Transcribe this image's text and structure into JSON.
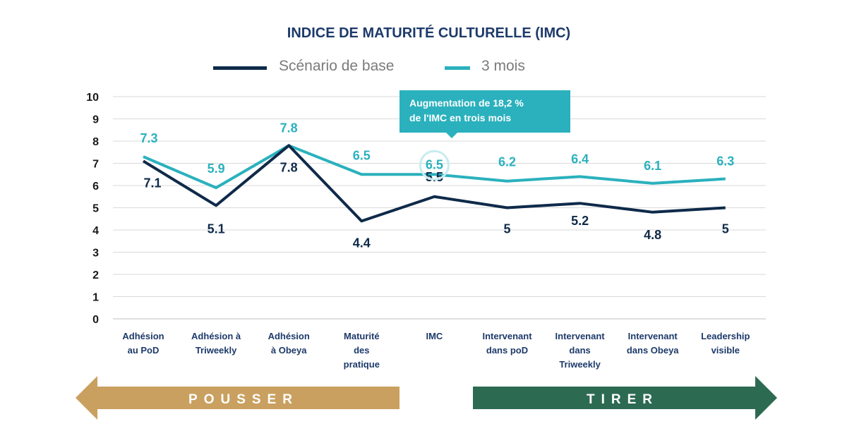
{
  "colors": {
    "base": "#0f2a4a",
    "three_months": "#2ab1bd",
    "grid": "#d9d9d9",
    "pousser": "#c9a060",
    "tirer": "#2d6a52"
  },
  "chart_data": {
    "type": "line",
    "title": "INDICE DE MATURITÉ CULTURELLE (IMC)",
    "xlabel": "",
    "ylabel": "",
    "ylim": [
      0,
      10
    ],
    "yticks": [
      "0",
      "1",
      "2",
      "3",
      "4",
      "5",
      "6",
      "7",
      "8",
      "9",
      "10"
    ],
    "grid": true,
    "legend_position": "top",
    "categories": [
      [
        "Adhésion",
        "au PoD"
      ],
      [
        "Adhésion à",
        "Triweekly"
      ],
      [
        "Adhésion",
        "à Obeya"
      ],
      [
        "Maturité",
        "des",
        "pratique"
      ],
      [
        "IMC"
      ],
      [
        "Intervenant",
        "dans poD"
      ],
      [
        "Intervenant",
        "dans",
        "Triweekly"
      ],
      [
        "Intervenant",
        "dans Obeya"
      ],
      [
        "Leadership",
        "visible"
      ]
    ],
    "series": [
      {
        "name": "Scénario de base",
        "values": [
          7.1,
          5.1,
          7.8,
          4.4,
          5.5,
          5.0,
          5.2,
          4.8,
          5.0
        ],
        "labels": [
          "7.1",
          "5.1",
          "7.8",
          "4.4",
          "5.5",
          "5",
          "5.2",
          "4.8",
          "5"
        ]
      },
      {
        "name": "3 mois",
        "values": [
          7.3,
          5.9,
          7.8,
          6.5,
          6.5,
          6.2,
          6.4,
          6.1,
          6.3
        ],
        "labels": [
          "7.3",
          "5.9",
          "7.8",
          "6.5",
          "6.5",
          "6.2",
          "6.4",
          "6.1",
          "6.3"
        ]
      }
    ],
    "annotations": [
      {
        "text_lines": [
          "Augmentation de 18,2 %",
          "de l'IMC en trois mois"
        ],
        "category_index": 4
      }
    ]
  },
  "arrows": {
    "pousser": "POUSSER",
    "tirer": "TIRER"
  }
}
